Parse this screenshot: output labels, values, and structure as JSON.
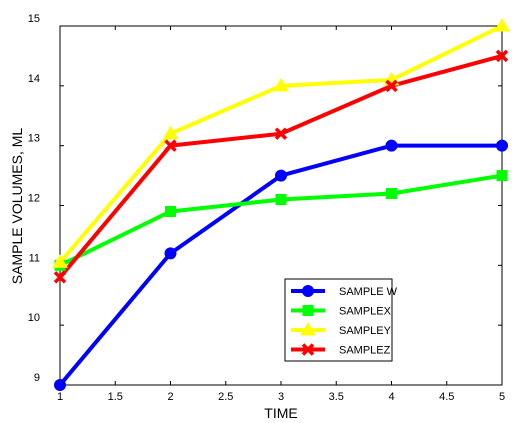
{
  "chart_data": {
    "type": "line",
    "title": "",
    "xlabel": "TIME",
    "ylabel": "SAMPLE VOLUMES, ML",
    "xlim": [
      1,
      5
    ],
    "ylim": [
      9,
      15
    ],
    "x_ticks": [
      "1",
      "1.5",
      "2",
      "2.5",
      "3",
      "3.5",
      "4",
      "4.5",
      "5"
    ],
    "y_ticks": [
      "9",
      "10",
      "11",
      "12",
      "13",
      "14",
      "15"
    ],
    "grid": false,
    "legend_position": "lower-right",
    "x": [
      1,
      2,
      3,
      4,
      5
    ],
    "series": [
      {
        "name": "SAMPLE W",
        "color": "#0000ff",
        "marker": "circle",
        "values": [
          9.0,
          11.2,
          12.5,
          13.0,
          13.0
        ]
      },
      {
        "name": "SAMPLEX",
        "color": "#00ff00",
        "marker": "square",
        "values": [
          11.0,
          11.9,
          12.1,
          12.2,
          12.5
        ]
      },
      {
        "name": "SAMPLEY",
        "color": "#ffff00",
        "marker": "triangle",
        "values": [
          11.05,
          13.2,
          14.0,
          14.1,
          15.0
        ]
      },
      {
        "name": "SAMPLEZ",
        "color": "#ff0000",
        "marker": "x",
        "values": [
          10.8,
          13.0,
          13.2,
          14.0,
          14.5
        ]
      }
    ]
  }
}
